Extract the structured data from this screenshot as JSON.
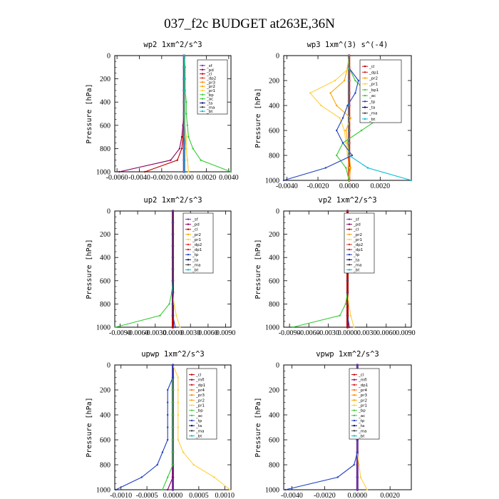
{
  "figure_title": "037_f2c  BUDGET at263E,36N",
  "chart_data": [
    {
      "type": "line",
      "title": "wp2   1xm^2/s^3",
      "ylabel": "Pressure [hPa]",
      "xlim": [
        -0.0062,
        0.0042
      ],
      "ylim": [
        1000,
        0
      ],
      "xticks": [
        -0.006,
        -0.004,
        -0.002,
        0.0,
        0.002,
        0.004
      ],
      "xticklabels": [
        "-0.0060",
        "-0.0040",
        "-0.0020",
        "0.0000",
        "0.0020",
        "0.0040"
      ],
      "yticks": [
        0,
        200,
        400,
        600,
        800,
        1000
      ],
      "legend": [
        "_sf",
        "_pd",
        "_cl",
        "_dp2",
        "_pr3",
        "_pr2",
        "_pr1",
        "_bp",
        "_ac",
        "_ta",
        "_ma",
        "_bt"
      ],
      "series": [
        {
          "name": "_sf",
          "color": "#7030a0",
          "x": [
            0,
            0,
            0,
            0,
            0,
            0,
            0,
            0,
            0,
            0,
            0
          ],
          "y": [
            0,
            100,
            200,
            300,
            400,
            500,
            600,
            700,
            800,
            900,
            1000
          ]
        },
        {
          "name": "_pd",
          "color": "#8b0060",
          "x": [
            0,
            0,
            0,
            0,
            0,
            0,
            -0.0001,
            -0.0002,
            -0.0004,
            -0.0012,
            -0.0058
          ],
          "y": [
            0,
            100,
            200,
            300,
            400,
            500,
            600,
            700,
            800,
            900,
            1000
          ]
        },
        {
          "name": "_cl",
          "color": "#c00000",
          "x": [
            0,
            0,
            0,
            0,
            0,
            0,
            0,
            -0.0001,
            -0.0002,
            -0.0006,
            -0.0035
          ],
          "y": [
            0,
            100,
            200,
            300,
            400,
            500,
            600,
            700,
            800,
            900,
            1000
          ]
        },
        {
          "name": "_pr3",
          "color": "#ffa500",
          "x": [
            0,
            0.0001,
            0.0001,
            0.0001,
            0.0001,
            0.0001,
            0.0001,
            0.0001,
            0.0002,
            0.0003,
            0.0004
          ],
          "y": [
            0,
            100,
            200,
            300,
            400,
            500,
            600,
            700,
            800,
            900,
            1000
          ]
        },
        {
          "name": "_pr1",
          "color": "#ffd040",
          "x": [
            0,
            0.0001,
            0.0001,
            0.0001,
            0.0001,
            0.0001,
            0.0001,
            0.0002,
            0.0002,
            0.0003,
            0.0004
          ],
          "y": [
            0,
            100,
            200,
            300,
            400,
            500,
            600,
            700,
            800,
            900,
            1000
          ]
        },
        {
          "name": "_ac",
          "color": "#33cc33",
          "x": [
            0,
            0.0001,
            0.0001,
            0.0001,
            0.0002,
            0.0002,
            0.0003,
            0.0004,
            0.0008,
            0.0015,
            0.0042
          ],
          "y": [
            0,
            100,
            200,
            300,
            400,
            500,
            600,
            700,
            800,
            900,
            1000
          ]
        },
        {
          "name": "_bt",
          "color": "#00bcd4",
          "x": [
            0,
            0,
            0,
            0,
            0,
            0,
            0,
            0,
            0,
            0,
            0
          ],
          "y": [
            0,
            100,
            200,
            300,
            400,
            500,
            600,
            700,
            800,
            900,
            1000
          ]
        }
      ]
    },
    {
      "type": "line",
      "title": "wp3   1xm^(3) s^(-4)",
      "ylabel": "Pressure [hPa]",
      "xlim": [
        -0.0042,
        0.004
      ],
      "ylim": [
        1000,
        0
      ],
      "xticks": [
        -0.004,
        -0.002,
        0.0,
        0.002
      ],
      "xticklabels": [
        "-0.0040",
        "-0.0020",
        "0.0000",
        "0.0020"
      ],
      "yticks": [
        0,
        200,
        400,
        600,
        800,
        1000
      ],
      "legend": [
        "_cl",
        "_dp1",
        "_pr2",
        "_pr1",
        "_bp1",
        "_ac",
        "_tp",
        "_ta",
        "_ma",
        "_bt"
      ],
      "series": [
        {
          "name": "_cl",
          "color": "#c00000",
          "x": [
            0,
            0,
            0,
            0,
            0,
            0,
            0,
            0,
            0,
            0,
            0
          ],
          "y": [
            0,
            100,
            200,
            300,
            400,
            500,
            600,
            700,
            800,
            900,
            1000
          ]
        },
        {
          "name": "_pr2",
          "color": "#ffa500",
          "x": [
            0,
            -0.0001,
            -0.0003,
            -0.0012,
            -0.0008,
            0.0001,
            -0.0002,
            -0.0001,
            0,
            0.0001,
            0
          ],
          "y": [
            0,
            100,
            200,
            300,
            400,
            500,
            600,
            700,
            800,
            900,
            1000
          ]
        },
        {
          "name": "_pr1",
          "color": "#ffd040",
          "x": [
            0,
            0,
            -0.0009,
            -0.0025,
            -0.0018,
            -0.0006,
            -0.0003,
            -0.0002,
            -0.0001,
            0,
            0
          ],
          "y": [
            0,
            100,
            200,
            300,
            400,
            500,
            600,
            700,
            800,
            900,
            1000
          ]
        },
        {
          "name": "_ac",
          "color": "#33cc33",
          "x": [
            0,
            0,
            0.0004,
            0.0012,
            0.0016,
            0.002,
            0.0008,
            -0.0004,
            -0.0008,
            -0.0002,
            0
          ],
          "y": [
            0,
            100,
            200,
            300,
            400,
            500,
            600,
            700,
            800,
            900,
            1000
          ]
        },
        {
          "name": "_tp",
          "color": "#1f3fbf",
          "x": [
            0,
            0,
            0.0006,
            0.0004,
            -0.0001,
            -0.0004,
            -0.0008,
            -0.0004,
            0.0002,
            -0.0015,
            -0.0042
          ],
          "y": [
            0,
            100,
            200,
            300,
            400,
            500,
            600,
            700,
            800,
            900,
            1000
          ]
        },
        {
          "name": "_bt",
          "color": "#00bcd4",
          "x": [
            0,
            0,
            0,
            0,
            0,
            0,
            0,
            0,
            0,
            0.0012,
            0.004
          ],
          "y": [
            0,
            100,
            200,
            300,
            400,
            500,
            600,
            700,
            800,
            900,
            1000
          ]
        }
      ]
    },
    {
      "type": "line",
      "title": "up2   1xm^2/s^3",
      "ylabel": "Pressure [hPa]",
      "xlim": [
        -0.0099,
        0.0099
      ],
      "ylim": [
        1000,
        0
      ],
      "xticks": [
        -0.009,
        -0.006,
        -0.003,
        0.0,
        0.003,
        0.006,
        0.009
      ],
      "xticklabels": [
        "-0.0090",
        "-0.0060",
        "-0.0030",
        "0.0000",
        "0.0030",
        "0.0060",
        "0.0090"
      ],
      "yticks": [
        0,
        200,
        400,
        600,
        800,
        1000
      ],
      "legend": [
        "_sf",
        "_pd",
        "_cl",
        "_pr2",
        "_pr1",
        "_dp2",
        "_dp1",
        "_tp",
        "_ta",
        "_ma",
        "_bt"
      ],
      "series": [
        {
          "name": "_cl",
          "color": "#c00000",
          "x": [
            0,
            0,
            0,
            0,
            0,
            0,
            0,
            0,
            0,
            0,
            0
          ],
          "y": [
            0,
            100,
            200,
            300,
            400,
            500,
            600,
            700,
            800,
            900,
            1000
          ]
        },
        {
          "name": "_pr1",
          "color": "#ffd040",
          "x": [
            0,
            0,
            0,
            0,
            0,
            0,
            0,
            0,
            0.0002,
            0.0006,
            0.0012
          ],
          "y": [
            0,
            100,
            200,
            300,
            400,
            500,
            600,
            700,
            800,
            900,
            1000
          ]
        },
        {
          "name": "_dp2",
          "color": "#33cc33",
          "x": [
            0,
            0,
            0,
            0,
            0,
            0,
            0,
            -0.0002,
            -0.0006,
            -0.0022,
            -0.0098
          ],
          "y": [
            0,
            100,
            200,
            300,
            400,
            500,
            600,
            700,
            800,
            900,
            1000
          ]
        },
        {
          "name": "_tp",
          "color": "#1f3fbf",
          "x": [
            0,
            0,
            0,
            0,
            0,
            0,
            0,
            0,
            0,
            0,
            0.0004
          ],
          "y": [
            0,
            100,
            200,
            300,
            400,
            500,
            600,
            700,
            800,
            900,
            1000
          ]
        }
      ]
    },
    {
      "type": "line",
      "title": "vp2   1xm^2/s^3",
      "ylabel": "Pressure [hPa]",
      "xlim": [
        -0.0099,
        0.0099
      ],
      "ylim": [
        1000,
        0
      ],
      "xticks": [
        -0.009,
        -0.006,
        -0.003,
        0.0,
        0.003,
        0.006,
        0.009
      ],
      "xticklabels": [
        "-0.0090",
        "-0.0060",
        "-0.0030",
        "0.0000",
        "0.0030",
        "0.0060",
        "0.0090"
      ],
      "yticks": [
        0,
        200,
        400,
        600,
        800,
        1000
      ],
      "legend": [
        "_sf",
        "_pd",
        "_cl",
        "_pr2",
        "_pr1",
        "_dp2",
        "_dp1",
        "_tp",
        "_ta",
        "_ma",
        "_bt"
      ],
      "series": [
        {
          "name": "_cl",
          "color": "#c00000",
          "x": [
            0,
            0,
            0,
            0,
            0,
            0,
            0,
            0,
            0,
            0,
            0
          ],
          "y": [
            0,
            100,
            200,
            300,
            400,
            500,
            600,
            700,
            800,
            900,
            1000
          ]
        },
        {
          "name": "_pr1",
          "color": "#ffd040",
          "x": [
            0,
            0,
            0,
            0,
            0,
            0,
            0,
            0,
            0.0002,
            0.0005,
            0.001
          ],
          "y": [
            0,
            100,
            200,
            300,
            400,
            500,
            600,
            700,
            800,
            900,
            1000
          ]
        },
        {
          "name": "_dp2",
          "color": "#33cc33",
          "x": [
            0,
            0,
            0,
            0,
            0,
            0,
            0,
            0,
            -0.0003,
            -0.0012,
            -0.0085
          ],
          "y": [
            0,
            100,
            200,
            300,
            400,
            500,
            600,
            700,
            800,
            900,
            1000
          ]
        },
        {
          "name": "_tp",
          "color": "#1f3fbf",
          "x": [
            0,
            0,
            0,
            0,
            0,
            0,
            0,
            0,
            0,
            0,
            0.0003
          ],
          "y": [
            0,
            100,
            200,
            300,
            400,
            500,
            600,
            700,
            800,
            900,
            1000
          ]
        }
      ]
    },
    {
      "type": "line",
      "title": "upwp   1xm^2/s^3",
      "ylabel": "Pressure [hPa]",
      "xlim": [
        -0.00112,
        0.00112
      ],
      "ylim": [
        1000,
        0
      ],
      "xticks": [
        -0.001,
        -0.0005,
        0.0,
        0.0005,
        0.001
      ],
      "xticklabels": [
        "-0.0010",
        "-0.0005",
        "0.0000",
        "0.0005",
        "0.0010"
      ],
      "yticks": [
        0,
        200,
        400,
        600,
        800,
        1000
      ],
      "legend": [
        "_cl",
        "_mfl",
        "_dp1",
        "_pr4",
        "_pr3",
        "_pr2",
        "_pr1",
        "_bp",
        "_ac",
        "_tp",
        "_ta",
        "_ma",
        "_bt"
      ],
      "series": [
        {
          "name": "_cl",
          "color": "#7030a0",
          "x": [
            0,
            0,
            0,
            0,
            0,
            0,
            0,
            0,
            0,
            0,
            0
          ],
          "y": [
            0,
            100,
            200,
            300,
            400,
            500,
            600,
            700,
            800,
            900,
            1000
          ]
        },
        {
          "name": "_mfl",
          "color": "#8b0060",
          "x": [
            0,
            0,
            0,
            0,
            0,
            0,
            0,
            0,
            0,
            0,
            -0.0001
          ],
          "y": [
            0,
            100,
            200,
            300,
            400,
            500,
            600,
            700,
            800,
            900,
            1000
          ]
        },
        {
          "name": "_pr1",
          "color": "#ffd040",
          "x": [
            0,
            0.0001,
            0.0001,
            0.0001,
            0.0001,
            0.0001,
            0.0001,
            0.0002,
            0.0004,
            0.0008,
            0.0011
          ],
          "y": [
            0,
            100,
            200,
            300,
            400,
            500,
            600,
            700,
            800,
            900,
            1000
          ]
        },
        {
          "name": "_ac",
          "color": "#33cc33",
          "x": [
            0,
            0,
            0,
            0,
            0,
            0,
            0,
            0,
            0,
            -0.0001,
            -0.0002
          ],
          "y": [
            0,
            100,
            200,
            300,
            400,
            500,
            600,
            700,
            800,
            900,
            1000
          ]
        },
        {
          "name": "_tp",
          "color": "#1f3fbf",
          "x": [
            0,
            0,
            -0.0001,
            -0.0001,
            -0.0001,
            -0.0001,
            -0.0001,
            -0.0002,
            -0.0003,
            -0.0006,
            -0.0011
          ],
          "y": [
            0,
            100,
            200,
            300,
            400,
            500,
            600,
            700,
            800,
            900,
            1000
          ]
        }
      ]
    },
    {
      "type": "line",
      "title": "vpwp   1xm^2/s^3",
      "ylabel": "Pressure [hPa]",
      "xlim": [
        -0.0045,
        0.0033
      ],
      "ylim": [
        1000,
        0
      ],
      "xticks": [
        -0.004,
        -0.002,
        0.0,
        0.002
      ],
      "xticklabels": [
        "-0.0040",
        "-0.0020",
        "0.0000",
        "0.0020"
      ],
      "yticks": [
        0,
        200,
        400,
        600,
        800,
        1000
      ],
      "legend": [
        "_cl",
        "_mfl",
        "_dp1",
        "_pr4",
        "_pr3",
        "_pr2",
        "_pr1",
        "_bp",
        "_ac",
        "_tp",
        "_ta",
        "_ma",
        "_bt"
      ],
      "series": [
        {
          "name": "_cl",
          "color": "#7030a0",
          "x": [
            0,
            0,
            0,
            0,
            0,
            0,
            0,
            0,
            0,
            0,
            0
          ],
          "y": [
            0,
            100,
            200,
            300,
            400,
            500,
            600,
            700,
            800,
            900,
            1000
          ]
        },
        {
          "name": "_pr1",
          "color": "#ffd040",
          "x": [
            0,
            0,
            0,
            0,
            0,
            0,
            0,
            0,
            0.0001,
            0.0002,
            0.0006
          ],
          "y": [
            0,
            100,
            200,
            300,
            400,
            500,
            600,
            700,
            800,
            900,
            1000
          ]
        },
        {
          "name": "_tp",
          "color": "#1f3fbf",
          "x": [
            0,
            0,
            0,
            0,
            0,
            0,
            0,
            0,
            -0.0002,
            -0.0012,
            -0.0044
          ],
          "y": [
            0,
            100,
            200,
            300,
            400,
            500,
            600,
            700,
            800,
            900,
            1000
          ]
        }
      ]
    }
  ],
  "legend_colors": {
    "_sf": "#7030a0",
    "_pd": "#8b0060",
    "_cl": "#c00000",
    "_mfl": "#8b0060",
    "_dp1": "#d01c1c",
    "_dp2": "#e03030",
    "_pr1": "#ffd040",
    "_pr2": "#ffa500",
    "_pr3": "#ff8c00",
    "_pr4": "#ff7000",
    "_bp": "#44cc44",
    "_bp1": "#44cc44",
    "_ac": "#33cc33",
    "_tp": "#1f3fbf",
    "_ta": "#000080",
    "_ma": "#404040",
    "_bt": "#00bcd4"
  }
}
